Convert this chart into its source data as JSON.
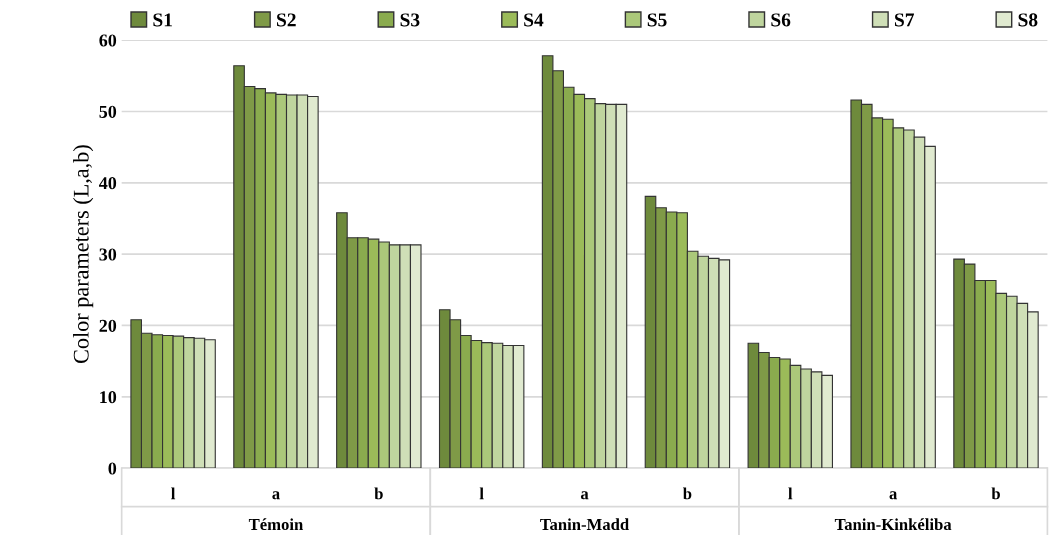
{
  "chart_data": {
    "type": "bar",
    "ylabel": "Color parameters (L,a,b)",
    "categories": [
      "l",
      "a",
      "b",
      "l",
      "a",
      "b",
      "l",
      "a",
      "b"
    ],
    "annotations": [
      "Témoin",
      "Tanin-Madd",
      "Tanin-Kinkéliba"
    ],
    "series": [
      {
        "name": "S1",
        "color": "#6e8a3c",
        "values": [
          20.8,
          56.4,
          35.8,
          22.2,
          57.8,
          38.1,
          17.5,
          51.6,
          29.3
        ]
      },
      {
        "name": "S2",
        "color": "#7f9a47",
        "values": [
          18.9,
          53.5,
          32.3,
          20.8,
          55.7,
          36.5,
          16.2,
          51.0,
          28.6
        ]
      },
      {
        "name": "S3",
        "color": "#8aab4e",
        "values": [
          18.7,
          53.2,
          32.3,
          18.6,
          53.4,
          35.9,
          15.5,
          49.1,
          26.3
        ]
      },
      {
        "name": "S4",
        "color": "#9bbb59",
        "values": [
          18.6,
          52.6,
          32.1,
          17.9,
          52.4,
          35.8,
          15.3,
          48.9,
          26.3
        ]
      },
      {
        "name": "S5",
        "color": "#abc87a",
        "values": [
          18.5,
          52.4,
          31.7,
          17.6,
          51.8,
          30.4,
          14.4,
          47.7,
          24.5
        ]
      },
      {
        "name": "S6",
        "color": "#bfd59e",
        "values": [
          18.3,
          52.3,
          31.3,
          17.5,
          51.1,
          29.7,
          13.9,
          47.4,
          24.1
        ]
      },
      {
        "name": "S7",
        "color": "#cfdfb7",
        "values": [
          18.2,
          52.3,
          31.3,
          17.2,
          51.0,
          29.4,
          13.5,
          46.4,
          23.1
        ]
      },
      {
        "name": "S8",
        "color": "#e0ead0",
        "values": [
          18.0,
          52.1,
          31.3,
          17.2,
          51.0,
          29.2,
          13.0,
          45.1,
          21.9
        ]
      }
    ],
    "ylim": [
      0,
      60
    ],
    "yticks": [
      0,
      10,
      20,
      30,
      40,
      50,
      60
    ],
    "grid": "y",
    "legend": "top"
  }
}
